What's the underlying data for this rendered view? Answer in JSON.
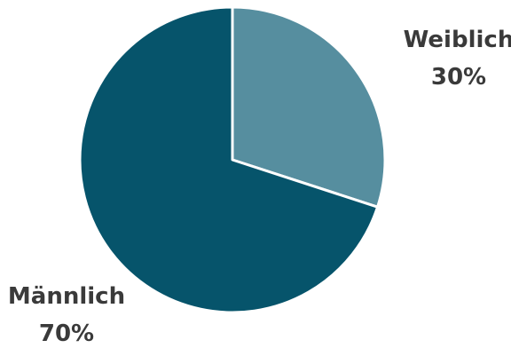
{
  "chart_data": {
    "type": "pie",
    "slices": [
      {
        "label": "Weiblich",
        "value": 30,
        "value_label": "30%",
        "color": "#568e9f"
      },
      {
        "label": "Männlich",
        "value": 70,
        "value_label": "70%",
        "color": "#06546b"
      }
    ],
    "start_angle": "12 o'clock",
    "direction": "clockwise",
    "slice_border_color": "#ffffff",
    "label_color": "#3a3a3a",
    "legend": "none"
  }
}
